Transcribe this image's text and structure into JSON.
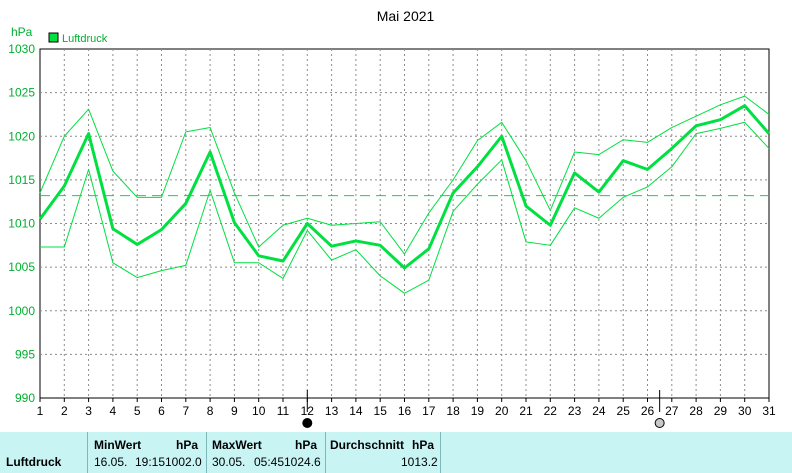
{
  "chart_data": {
    "type": "line",
    "title": "Mai 2021",
    "ylabel": "hPa",
    "ylim": [
      990,
      1030
    ],
    "yticks": [
      990,
      995,
      1000,
      1005,
      1010,
      1015,
      1020,
      1025,
      1030
    ],
    "x": [
      1,
      2,
      3,
      4,
      5,
      6,
      7,
      8,
      9,
      10,
      11,
      12,
      13,
      14,
      15,
      16,
      17,
      18,
      19,
      20,
      21,
      22,
      23,
      24,
      25,
      26,
      27,
      28,
      29,
      30,
      31
    ],
    "legend": "top-left",
    "grid": true,
    "series": [
      {
        "name": "Luftdruck",
        "role": "mean",
        "color": "#00e040",
        "values": [
          1010.5,
          1014.3,
          1020.3,
          1009.4,
          1007.6,
          1009.3,
          1012.3,
          1018.2,
          1010.1,
          1006.3,
          1005.7,
          1010.0,
          1007.4,
          1008.0,
          1007.5,
          1004.9,
          1007.1,
          1013.5,
          1016.5,
          1020.0,
          1012.0,
          1009.8,
          1015.8,
          1013.6,
          1017.2,
          1016.2,
          1018.6,
          1021.2,
          1021.9,
          1023.5,
          1020.3
        ]
      },
      {
        "role": "max",
        "color": "#00e040",
        "values": [
          1013.5,
          1020.0,
          1023.1,
          1016.0,
          1013.0,
          1013.0,
          1020.5,
          1021.0,
          1013.5,
          1007.3,
          1009.8,
          1010.6,
          1009.8,
          1010.0,
          1010.2,
          1006.5,
          1011.2,
          1015.0,
          1019.5,
          1021.6,
          1017.2,
          1011.5,
          1018.2,
          1017.9,
          1019.6,
          1019.3,
          1021.0,
          1022.3,
          1023.6,
          1024.6,
          1022.5
        ]
      },
      {
        "role": "min",
        "color": "#00e040",
        "values": [
          1007.3,
          1007.3,
          1016.2,
          1005.5,
          1003.8,
          1004.6,
          1005.2,
          1013.8,
          1005.5,
          1005.5,
          1003.7,
          1009.2,
          1005.8,
          1007.0,
          1004.0,
          1002.0,
          1003.5,
          1011.4,
          1014.5,
          1017.3,
          1007.9,
          1007.5,
          1011.8,
          1010.6,
          1013.0,
          1014.2,
          1016.5,
          1020.3,
          1020.9,
          1021.6,
          1018.6
        ]
      },
      {
        "role": "average",
        "color": "#00e040",
        "value": 1013.2
      }
    ],
    "markers": [
      {
        "day": 12,
        "symbol": "new-moon-icon"
      },
      {
        "day": 26.5,
        "symbol": "full-moon-icon"
      }
    ]
  },
  "stats": {
    "row_label": "Luftdruck",
    "min": {
      "header": "MinWert",
      "unit": "hPa",
      "date": "16.05.",
      "time": "19:15",
      "value": "1002.0"
    },
    "max": {
      "header": "MaxWert",
      "unit": "hPa",
      "date": "30.05.",
      "time": "05:45",
      "value": "1024.6"
    },
    "avg": {
      "header": "Durchschnitt",
      "unit": "hPa",
      "value": "1013.2"
    }
  }
}
